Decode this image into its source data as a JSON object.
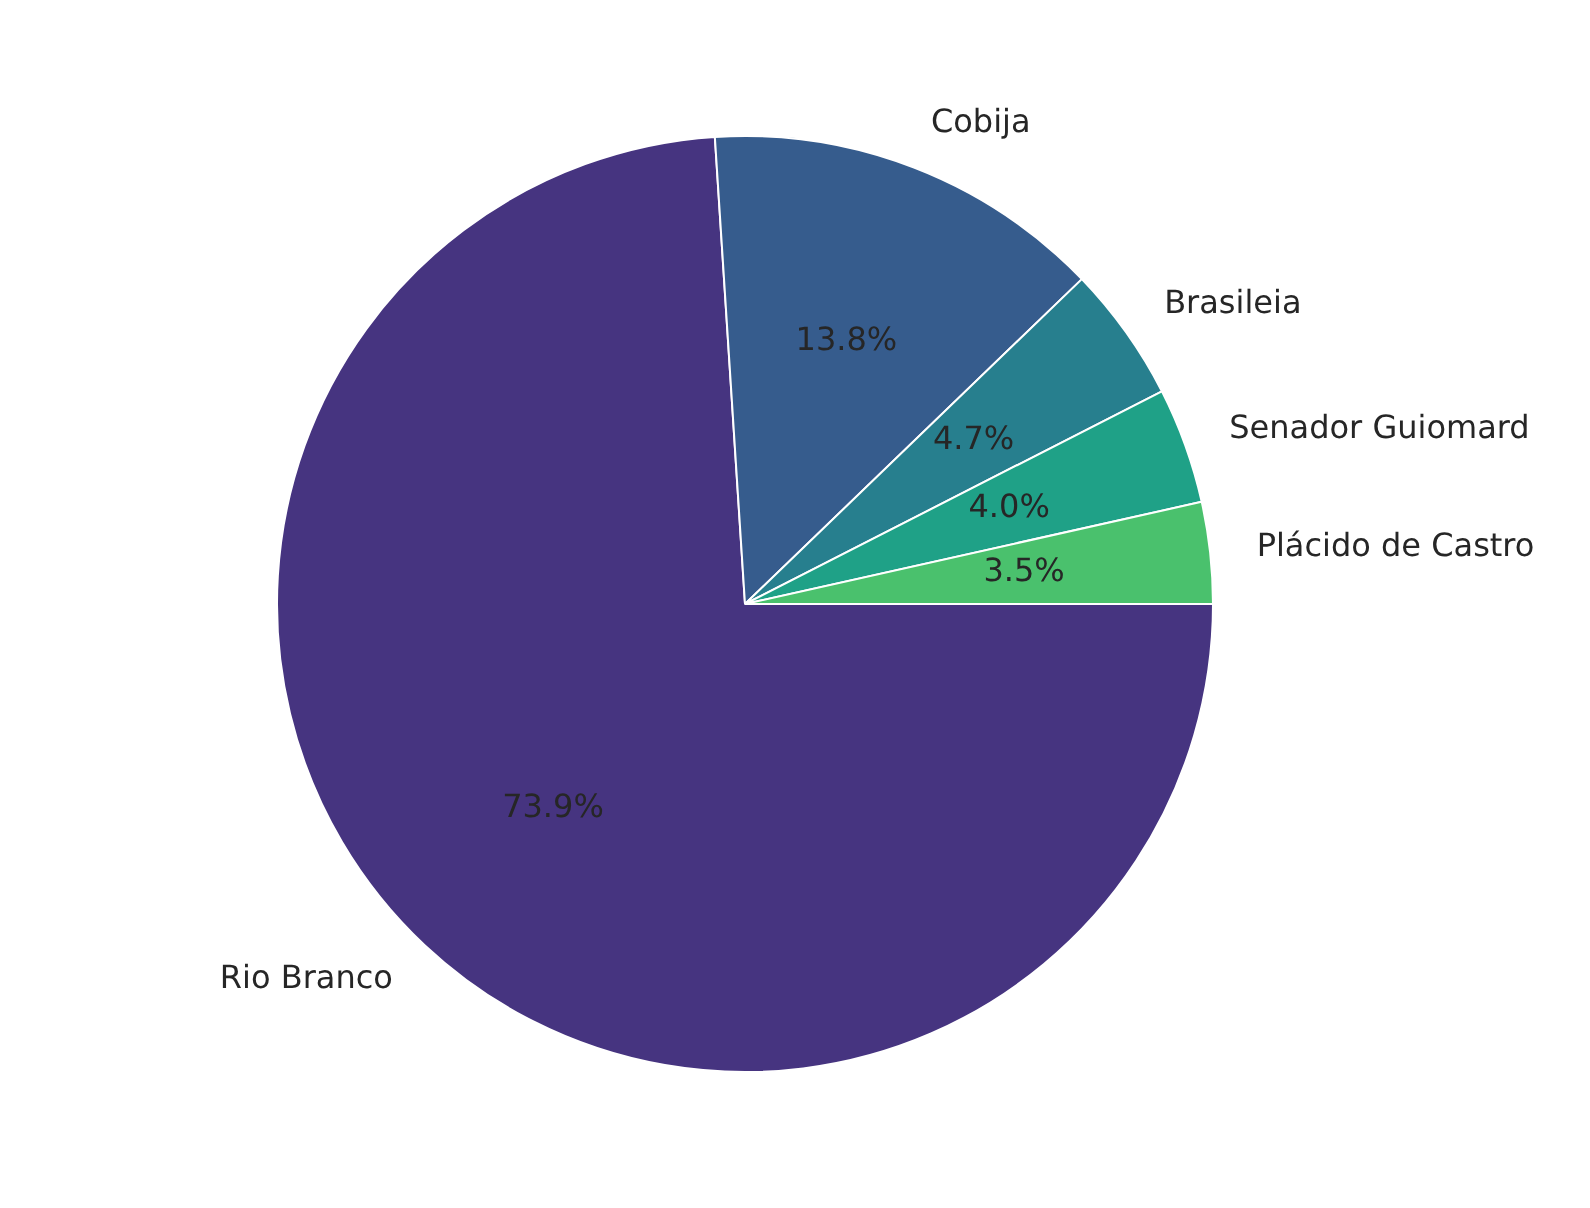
{
  "chart_data": {
    "type": "pie",
    "categories": [
      "Rio Branco",
      "Cobija",
      "Brasileia",
      "Senador Guiomard",
      "Plácido de Castro"
    ],
    "values": [
      73.9,
      13.8,
      4.7,
      4.0,
      3.5
    ],
    "value_labels": [
      "73.9%",
      "13.8%",
      "4.7%",
      "4.0%",
      "3.5%"
    ],
    "colors": [
      "#463480",
      "#365c8d",
      "#277f8e",
      "#1fa187",
      "#4ac16d"
    ],
    "legend": false
  }
}
